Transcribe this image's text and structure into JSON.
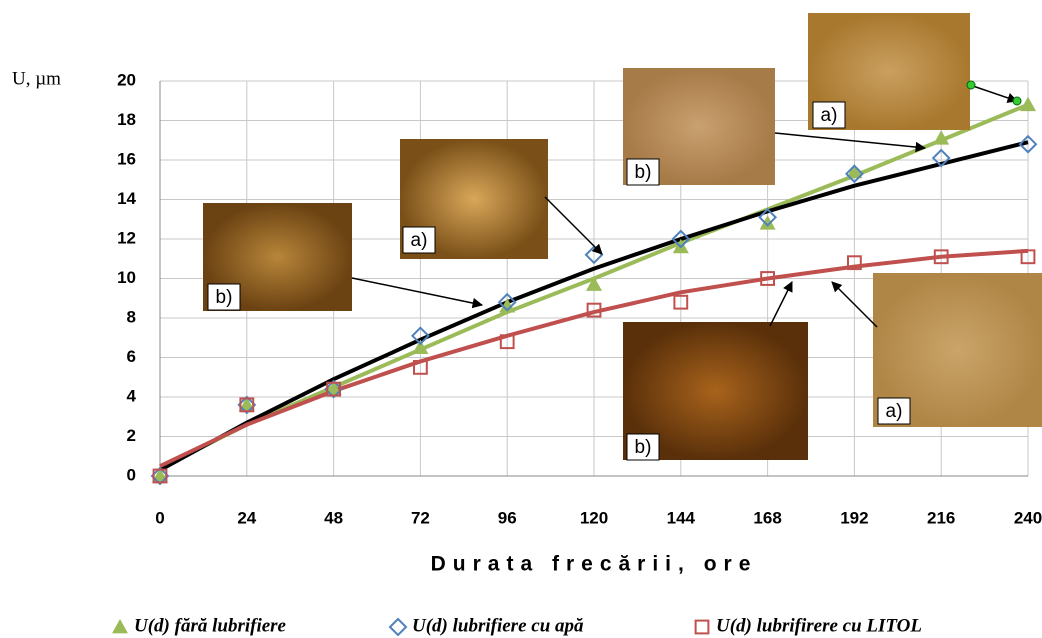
{
  "chart_data": {
    "type": "line",
    "y_label": "U, µm",
    "x_label": "Durata frecării, ore",
    "x": [
      0,
      24,
      48,
      72,
      96,
      120,
      144,
      168,
      192,
      216,
      240
    ],
    "series": [
      {
        "name": "U(d) fără lubrifiere",
        "color": "#9bbb59",
        "marker": "triangle",
        "values": [
          0,
          3.6,
          4.4,
          6.5,
          8.6,
          9.7,
          11.6,
          12.8,
          15.4,
          17.1,
          18.8
        ]
      },
      {
        "name": "U(d) lubrifiere cu apă",
        "color": "#4f81bd",
        "marker": "diamond",
        "values": [
          0,
          3.6,
          4.4,
          7.1,
          8.8,
          11.2,
          12.0,
          13.1,
          15.3,
          16.1,
          16.8
        ]
      },
      {
        "name": "U(d) lubrifirere cu LITOL",
        "color": "#c0504d",
        "marker": "square",
        "values": [
          0,
          3.6,
          4.4,
          5.5,
          6.8,
          8.4,
          8.8,
          10.0,
          10.8,
          11.1,
          11.1
        ]
      }
    ],
    "trendlines": [
      {
        "color": "#9bbb59",
        "values": [
          0.4,
          2.6,
          4.5,
          6.4,
          8.3,
          10.0,
          11.8,
          13.5,
          15.2,
          17.0,
          18.8
        ]
      },
      {
        "color": "#000000",
        "values": [
          0.3,
          2.7,
          4.9,
          6.9,
          8.8,
          10.5,
          12.0,
          13.4,
          14.7,
          15.8,
          16.9
        ]
      },
      {
        "color": "#c0504d",
        "values": [
          0.5,
          2.6,
          4.3,
          5.8,
          7.1,
          8.3,
          9.3,
          10.0,
          10.6,
          11.1,
          11.4
        ]
      }
    ],
    "xlim": [
      0,
      240
    ],
    "xticks": [
      0,
      24,
      48,
      72,
      96,
      120,
      144,
      168,
      192,
      216,
      240
    ],
    "ylim": [
      0,
      20
    ],
    "yticks": [
      0,
      2,
      4,
      6,
      8,
      10,
      12,
      14,
      16,
      18,
      20
    ],
    "grid": true,
    "annotations": [
      "b)",
      "a)",
      "b)",
      "a)",
      "b)",
      "a)"
    ]
  }
}
